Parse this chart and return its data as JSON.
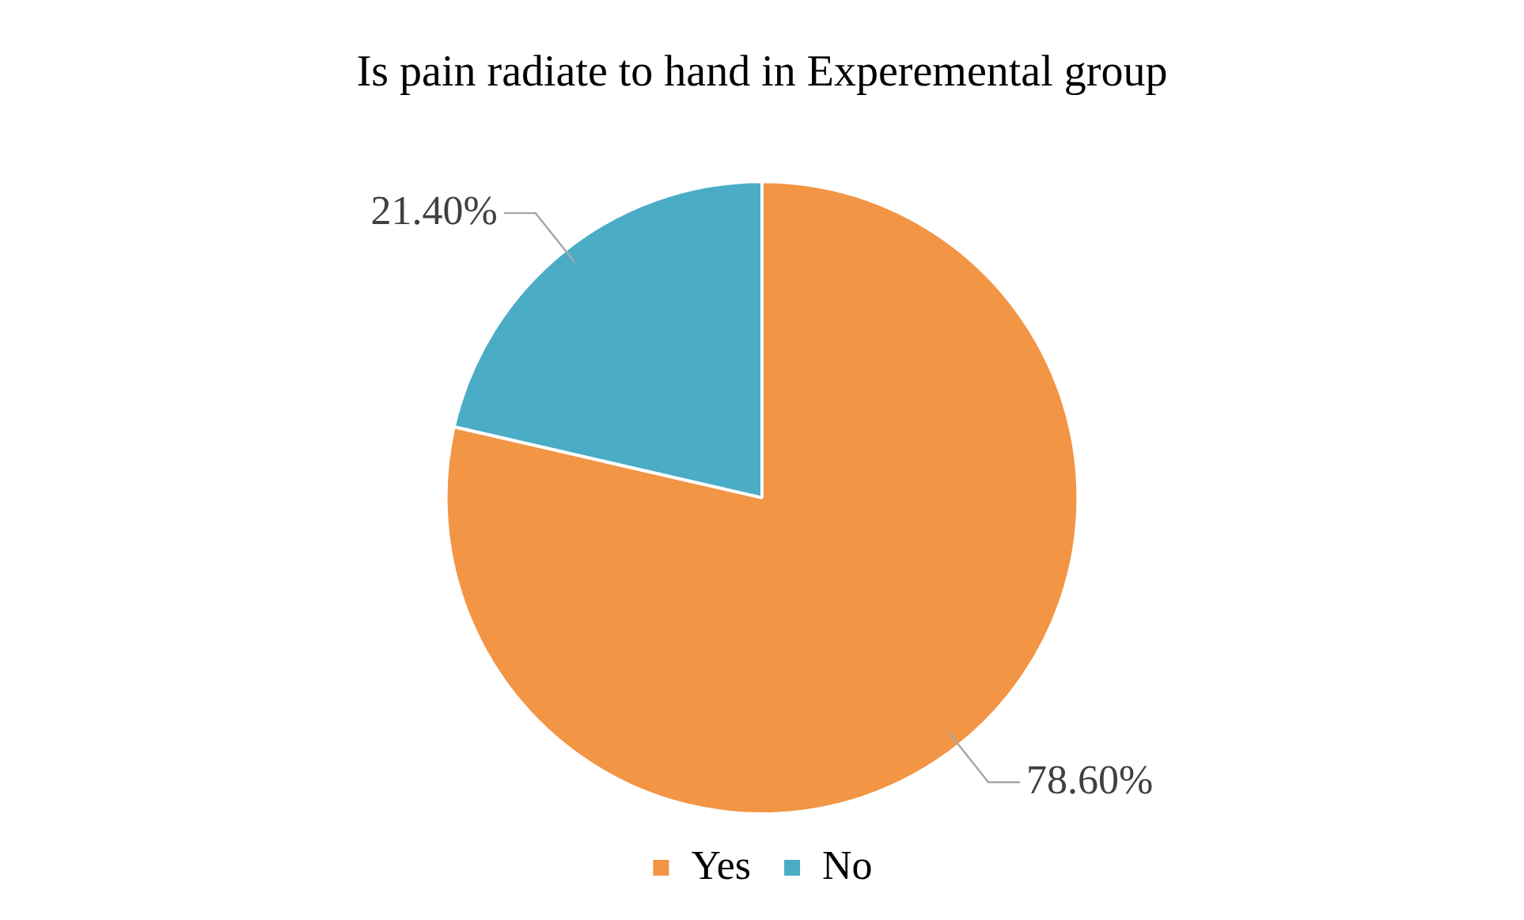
{
  "chart_data": {
    "type": "pie",
    "title": "Is pain radiate to hand in Experemental group",
    "categories": [
      "Yes",
      "No"
    ],
    "values": [
      78.6,
      21.4
    ],
    "colors": [
      "#f29545",
      "#4bacc6"
    ],
    "value_labels": [
      "78.60%",
      "21.40%"
    ],
    "legend": "bottom"
  }
}
